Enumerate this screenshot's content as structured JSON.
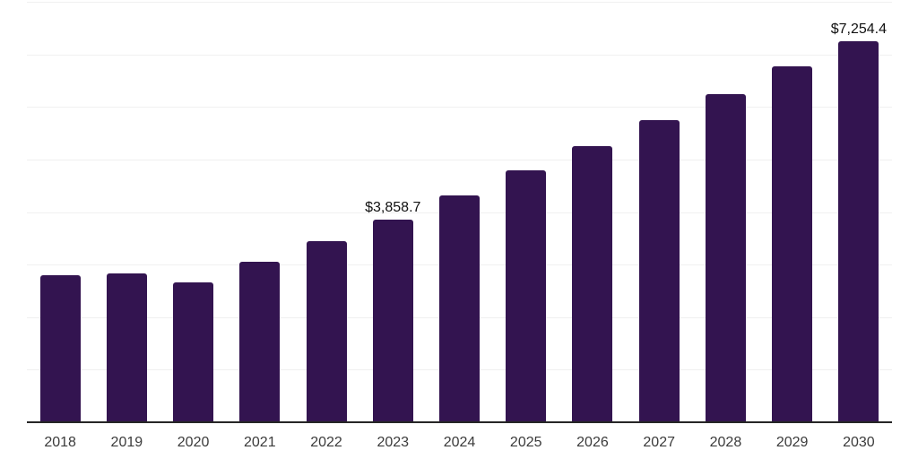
{
  "chart_data": {
    "type": "bar",
    "title": "",
    "xlabel": "",
    "ylabel": "",
    "categories": [
      "2018",
      "2019",
      "2020",
      "2021",
      "2022",
      "2023",
      "2024",
      "2025",
      "2026",
      "2027",
      "2028",
      "2029",
      "2030"
    ],
    "values": [
      2790,
      2835,
      2665,
      3050,
      3440,
      3858.7,
      4320,
      4795,
      5260,
      5755,
      6250,
      6780,
      7254.4
    ],
    "bar_labels": {
      "2023": "$3,858.7",
      "2030": "$7,254.4"
    },
    "ylim": [
      0,
      8000
    ],
    "gridline_step": 1000,
    "grid": "horizontal-only",
    "legend_position": "none",
    "y_tick_labels_visible": false,
    "colors": {
      "bar": "#331450",
      "axis_line": "#262626",
      "gridline": "#f0f0f0",
      "tick_label": "#3b3b3b",
      "data_label": "#111111",
      "background": "#ffffff"
    }
  }
}
